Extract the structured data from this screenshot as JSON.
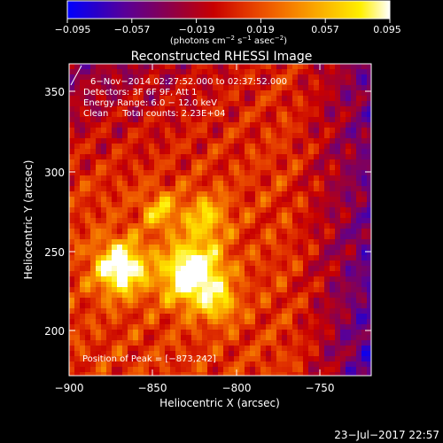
{
  "colorbar": {
    "ticks": [
      "−0.095",
      "−0.057",
      "−0.019",
      "0.019",
      "0.057",
      "0.095"
    ],
    "units_prefix": "(photons cm",
    "units_exp1": "−2",
    "units_mid": " s",
    "units_exp2": "−1",
    "units_mid2": " asec",
    "units_exp3": "−2",
    "units_suffix": ")",
    "colormap": [
      "#0000ff",
      "#2a00c8",
      "#5a0096",
      "#7a0064",
      "#a00030",
      "#c80000",
      "#e03000",
      "#f06000",
      "#f89000",
      "#fcc000",
      "#fff000",
      "#ffffff"
    ]
  },
  "plot": {
    "title": "Reconstructed RHESSI Image",
    "annotations": [
      "6−Nov−2014 02:27:52.000 to 02:37:52.000",
      "Detectors: 3F 6F 9F, Att 1",
      "Energy Range: 6.0 − 12.0 keV",
      "Clean     Total counts: 2.23E+04"
    ],
    "peak_label": "Position of Peak = [−873,242]",
    "xlabel": "Heliocentric X (arcsec)",
    "ylabel": "Heliocentric Y (arcsec)",
    "xticks": [
      "−900",
      "−850",
      "−800",
      "−750"
    ],
    "yticks": [
      "200",
      "250",
      "300",
      "350"
    ]
  },
  "footer": {
    "timestamp": "23−Jul−2017 22:57"
  }
}
